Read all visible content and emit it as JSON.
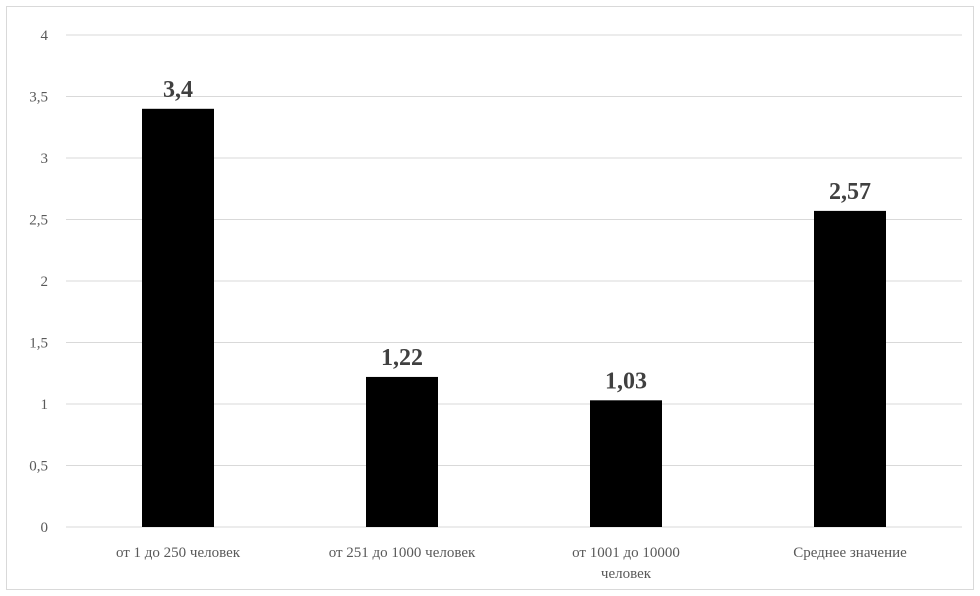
{
  "chart_data": {
    "type": "bar",
    "categories": [
      [
        "от 1 до 250 человек"
      ],
      [
        "от 251 до 1000 человек"
      ],
      [
        "от 1001 до 10000",
        "человек"
      ],
      [
        "Среднее значение"
      ]
    ],
    "values": [
      3.4,
      1.22,
      1.03,
      2.57
    ],
    "data_labels": [
      "3,4",
      "1,22",
      "1,03",
      "2,57"
    ],
    "y_ticks": [
      "0",
      "0,5",
      "1",
      "1,5",
      "2",
      "2,5",
      "3",
      "3,5",
      "4"
    ],
    "ylim": [
      0,
      4
    ],
    "grid": true,
    "legend": "none",
    "colors": {
      "bar": "#000000",
      "grid": "#d9d9d9",
      "text": "#595959",
      "label": "#404040"
    }
  }
}
